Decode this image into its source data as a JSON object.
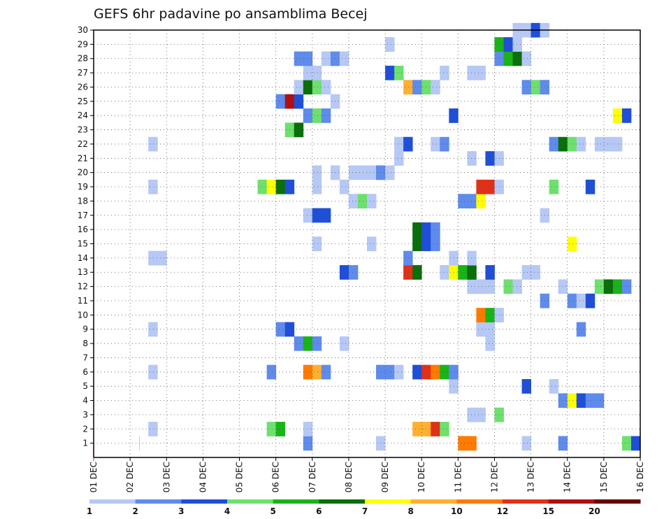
{
  "chart_data": {
    "type": "heatmap",
    "title": "GEFS 6hr padavine po ansamblima Becej",
    "x_tick_labels": [
      "01 DEC",
      "02 DEC",
      "03 DEC",
      "04 DEC",
      "05 DEC",
      "06 DEC",
      "07 DEC",
      "08 DEC",
      "09 DEC",
      "10 DEC",
      "11 DEC",
      "12 DEC",
      "13 DEC",
      "14 DEC",
      "15 DEC",
      "16 DEC"
    ],
    "y_tick_labels": [
      "1",
      "2",
      "3",
      "4",
      "5",
      "6",
      "7",
      "8",
      "9",
      "10",
      "11",
      "12",
      "13",
      "14",
      "15",
      "16",
      "17",
      "18",
      "19",
      "20",
      "21",
      "22",
      "23",
      "24",
      "25",
      "26",
      "27",
      "28",
      "29",
      "30"
    ],
    "xlim": [
      0,
      60
    ],
    "ylim": [
      0,
      30
    ],
    "grid": true,
    "colorbar": {
      "labels": [
        "1",
        "2",
        "3",
        "4",
        "5",
        "6",
        "7",
        "8",
        "10",
        "12",
        "15",
        "20"
      ],
      "colors": [
        "#b6c8f5",
        "#5f8bec",
        "#1f4fd8",
        "#6de06d",
        "#18b418",
        "#0a6e0a",
        "#ffff00",
        "#ffb030",
        "#ff7a00",
        "#e03018",
        "#b01010",
        "#6a0000"
      ]
    },
    "levels_legend": "1:[1,2) 2:[2,3) 3:[3,4) 4:[4,5) 5:[5,6) 6:[6,7) 7:[7,8) 8:[8,10) 9:[10,12) 10:[12,15) 11:[15,20) 12:>=20",
    "cells": [
      [
        24,
        1,
        2,
        1
      ],
      [
        32,
        1,
        1,
        1
      ],
      [
        41,
        1,
        9,
        1
      ],
      [
        42,
        1,
        9,
        1
      ],
      [
        48,
        1,
        1,
        1
      ],
      [
        52,
        1,
        2,
        1
      ],
      [
        59,
        1,
        4,
        1
      ],
      [
        60,
        1,
        3,
        1
      ],
      [
        6,
        1,
        2,
        0
      ],
      [
        7,
        2,
        1,
        1
      ],
      [
        20,
        2,
        4,
        1
      ],
      [
        21,
        2,
        5,
        1
      ],
      [
        24,
        2,
        1,
        1
      ],
      [
        36,
        2,
        8,
        2
      ],
      [
        38,
        2,
        10,
        1
      ],
      [
        39,
        2,
        4,
        1
      ],
      [
        42,
        3,
        1,
        2
      ],
      [
        45,
        3,
        4,
        1
      ],
      [
        52,
        4,
        2,
        1
      ],
      [
        53,
        4,
        7,
        1
      ],
      [
        54,
        4,
        3,
        1
      ],
      [
        55,
        4,
        2,
        2
      ],
      [
        40,
        5,
        1,
        1
      ],
      [
        48,
        5,
        3,
        1
      ],
      [
        51,
        5,
        1,
        1
      ],
      [
        7,
        6,
        1,
        1
      ],
      [
        20,
        6,
        2,
        1
      ],
      [
        24,
        6,
        9,
        1
      ],
      [
        25,
        6,
        8,
        1
      ],
      [
        26,
        6,
        2,
        1
      ],
      [
        32,
        6,
        2,
        2
      ],
      [
        34,
        6,
        1,
        1
      ],
      [
        36,
        6,
        3,
        1
      ],
      [
        37,
        6,
        10,
        1
      ],
      [
        38,
        6,
        9,
        1
      ],
      [
        39,
        6,
        5,
        1
      ],
      [
        40,
        6,
        2,
        1
      ],
      [
        23,
        8,
        2,
        1
      ],
      [
        24,
        8,
        5,
        1
      ],
      [
        25,
        8,
        2,
        1
      ],
      [
        28,
        8,
        1,
        1
      ],
      [
        44,
        8,
        1,
        1
      ],
      [
        7,
        9,
        1,
        1
      ],
      [
        21,
        9,
        2,
        1
      ],
      [
        22,
        9,
        3,
        1
      ],
      [
        43,
        9,
        1,
        2
      ],
      [
        54,
        9,
        2,
        1
      ],
      [
        43,
        10,
        9,
        1
      ],
      [
        44,
        10,
        5,
        1
      ],
      [
        45,
        10,
        1,
        1
      ],
      [
        50,
        11,
        2,
        1
      ],
      [
        53,
        11,
        2,
        1
      ],
      [
        54,
        11,
        1,
        1
      ],
      [
        55,
        11,
        3,
        1
      ],
      [
        42,
        12,
        1,
        3
      ],
      [
        46,
        12,
        4,
        1
      ],
      [
        47,
        12,
        1,
        1
      ],
      [
        52,
        12,
        1,
        1
      ],
      [
        56,
        12,
        4,
        1
      ],
      [
        57,
        12,
        6,
        1
      ],
      [
        58,
        12,
        5,
        1
      ],
      [
        59,
        12,
        2,
        1
      ],
      [
        28,
        13,
        3,
        1
      ],
      [
        29,
        13,
        2,
        1
      ],
      [
        35,
        13,
        10,
        1
      ],
      [
        36,
        13,
        6,
        1
      ],
      [
        39,
        13,
        1,
        1
      ],
      [
        40,
        13,
        7,
        1
      ],
      [
        41,
        13,
        5,
        1
      ],
      [
        42,
        13,
        6,
        1
      ],
      [
        44,
        13,
        3,
        1
      ],
      [
        48,
        13,
        1,
        2
      ],
      [
        7,
        14,
        1,
        2
      ],
      [
        35,
        14,
        2,
        1
      ],
      [
        40,
        14,
        1,
        1
      ],
      [
        42,
        14,
        1,
        1
      ],
      [
        25,
        15,
        1,
        1
      ],
      [
        31,
        15,
        1,
        1
      ],
      [
        36,
        15,
        6,
        1
      ],
      [
        37,
        15,
        3,
        1
      ],
      [
        38,
        15,
        2,
        1
      ],
      [
        53,
        15,
        7,
        1
      ],
      [
        36,
        16,
        6,
        1
      ],
      [
        37,
        16,
        3,
        1
      ],
      [
        38,
        16,
        2,
        1
      ],
      [
        24,
        17,
        1,
        1
      ],
      [
        25,
        17,
        3,
        2
      ],
      [
        50,
        17,
        1,
        1
      ],
      [
        29,
        18,
        1,
        1
      ],
      [
        30,
        18,
        4,
        1
      ],
      [
        31,
        18,
        1,
        1
      ],
      [
        41,
        18,
        2,
        2
      ],
      [
        43,
        18,
        7,
        1
      ],
      [
        7,
        19,
        1,
        1
      ],
      [
        19,
        19,
        4,
        1
      ],
      [
        20,
        19,
        7,
        1
      ],
      [
        21,
        19,
        6,
        1
      ],
      [
        22,
        19,
        3,
        1
      ],
      [
        25,
        19,
        1,
        1
      ],
      [
        28,
        19,
        1,
        1
      ],
      [
        43,
        19,
        10,
        2
      ],
      [
        45,
        19,
        1,
        1
      ],
      [
        51,
        19,
        4,
        1
      ],
      [
        55,
        19,
        3,
        1
      ],
      [
        25,
        20,
        1,
        1
      ],
      [
        27,
        20,
        1,
        1
      ],
      [
        29,
        20,
        1,
        3
      ],
      [
        32,
        20,
        2,
        1
      ],
      [
        33,
        20,
        1,
        1
      ],
      [
        34,
        21,
        1,
        1
      ],
      [
        42,
        21,
        1,
        1
      ],
      [
        44,
        21,
        3,
        1
      ],
      [
        45,
        21,
        1,
        1
      ],
      [
        7,
        22,
        1,
        1
      ],
      [
        34,
        22,
        1,
        1
      ],
      [
        35,
        22,
        3,
        1
      ],
      [
        38,
        22,
        1,
        1
      ],
      [
        39,
        22,
        2,
        1
      ],
      [
        51,
        22,
        2,
        1
      ],
      [
        52,
        22,
        6,
        1
      ],
      [
        53,
        22,
        4,
        1
      ],
      [
        54,
        22,
        1,
        1
      ],
      [
        56,
        22,
        1,
        3
      ],
      [
        22,
        23,
        4,
        1
      ],
      [
        23,
        23,
        6,
        1
      ],
      [
        24,
        24,
        2,
        1
      ],
      [
        25,
        24,
        4,
        1
      ],
      [
        26,
        24,
        2,
        1
      ],
      [
        40,
        24,
        3,
        1
      ],
      [
        58,
        24,
        7,
        1
      ],
      [
        59,
        24,
        3,
        1
      ],
      [
        21,
        25,
        2,
        1
      ],
      [
        22,
        25,
        11,
        1
      ],
      [
        23,
        25,
        3,
        1
      ],
      [
        27,
        25,
        1,
        1
      ],
      [
        23,
        26,
        1,
        1
      ],
      [
        24,
        26,
        6,
        1
      ],
      [
        25,
        26,
        4,
        1
      ],
      [
        26,
        26,
        1,
        1
      ],
      [
        35,
        26,
        8,
        1
      ],
      [
        36,
        26,
        2,
        1
      ],
      [
        37,
        26,
        4,
        1
      ],
      [
        38,
        26,
        1,
        1
      ],
      [
        48,
        26,
        2,
        1
      ],
      [
        49,
        26,
        4,
        1
      ],
      [
        50,
        26,
        2,
        1
      ],
      [
        24,
        27,
        1,
        2
      ],
      [
        33,
        27,
        3,
        1
      ],
      [
        34,
        27,
        4,
        1
      ],
      [
        39,
        27,
        1,
        1
      ],
      [
        42,
        27,
        1,
        2
      ],
      [
        23,
        28,
        2,
        2
      ],
      [
        26,
        28,
        1,
        1
      ],
      [
        27,
        28,
        2,
        1
      ],
      [
        28,
        28,
        1,
        1
      ],
      [
        45,
        28,
        2,
        1
      ],
      [
        46,
        28,
        5,
        1
      ],
      [
        47,
        28,
        6,
        1
      ],
      [
        48,
        28,
        1,
        1
      ],
      [
        33,
        29,
        1,
        1
      ],
      [
        45,
        29,
        5,
        1
      ],
      [
        46,
        29,
        3,
        1
      ],
      [
        47,
        29,
        1,
        1
      ],
      [
        47,
        30,
        1,
        1
      ],
      [
        48,
        30,
        1,
        1
      ],
      [
        49,
        30,
        3,
        1
      ],
      [
        50,
        30,
        1,
        1
      ]
    ]
  }
}
